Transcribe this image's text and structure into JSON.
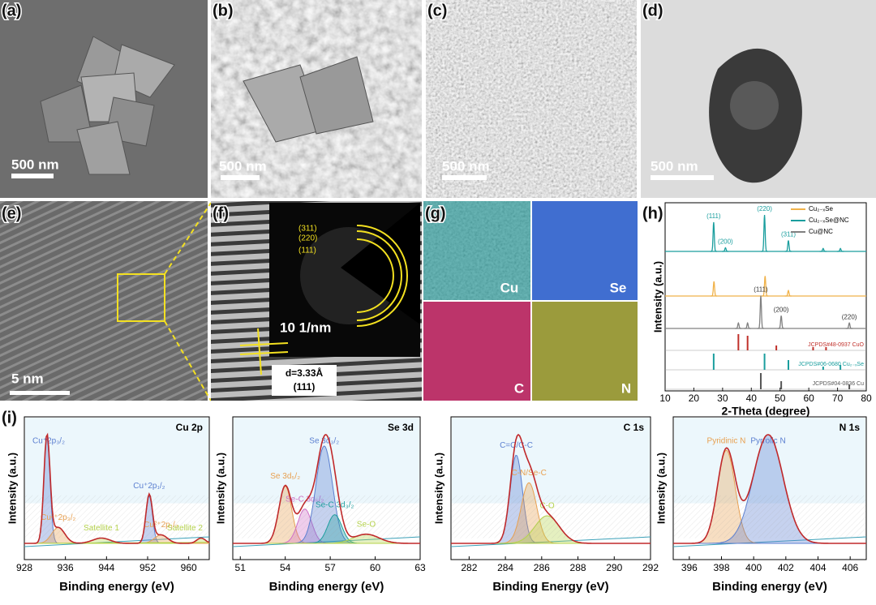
{
  "panels": {
    "a": {
      "label": "(a)",
      "scale_bar": "500 nm"
    },
    "b": {
      "label": "(b)",
      "scale_bar": "500 nm"
    },
    "c": {
      "label": "(c)",
      "scale_bar": "500 nm"
    },
    "d": {
      "label": "(d)",
      "scale_bar": "500 nm"
    },
    "e": {
      "label": "(e)",
      "scale_bar": "5 nm"
    },
    "f": {
      "label": "(f)",
      "rings": [
        "(311)",
        "(220)",
        "(111)"
      ],
      "inset_scale": "10 1/nm",
      "d_spacing": "d=3.33Å",
      "plane": "(111)"
    },
    "g": {
      "label": "(g)",
      "maps": [
        "Cu",
        "Se",
        "C",
        "N"
      ]
    },
    "h": {
      "label": "(h)",
      "type": "xrd",
      "x_label": "2-Theta (degree)",
      "y_label": "Intensity (a.u.)",
      "xlim": [
        10,
        80
      ],
      "xticks": [
        10,
        20,
        30,
        40,
        50,
        60,
        70,
        80
      ],
      "series": [
        {
          "name": "Cu₂₋ₓSe",
          "color": "#f0b24a",
          "peaks_x": [
            27,
            44.8,
            52.9
          ],
          "peaks_height": [
            0.4,
            0.55,
            0.15
          ]
        },
        {
          "name": "Cu₂₋ₓSe@NC",
          "color": "#1a9e9e",
          "peaks_x": [
            26.9,
            31,
            44.6,
            52.9,
            65,
            71
          ],
          "peaks_height": [
            0.8,
            0.1,
            1.0,
            0.3,
            0.08,
            0.08
          ],
          "peak_labels": [
            "(111)",
            "(200)",
            "(220)",
            "(311)",
            null,
            null
          ]
        },
        {
          "name": "Cu@NC",
          "color": "#808080",
          "peaks_x": [
            35.5,
            38.7,
            43.3,
            50.4,
            74.1
          ],
          "peaks_height": [
            0.15,
            0.15,
            0.9,
            0.35,
            0.15
          ],
          "peak_labels": [
            null,
            null,
            "(111)",
            "(200)",
            "(220)"
          ]
        }
      ],
      "references": [
        {
          "name": "JCPDS#48-0937 CuO",
          "color": "#c0302a",
          "peaks_x": [
            35.5,
            38.7,
            48.7,
            61.5,
            66
          ],
          "peaks_height": [
            1,
            0.9,
            0.3,
            0.2,
            0.2
          ]
        },
        {
          "name": "JCPDS#06-0680 Cu₂₋ₓSe",
          "color": "#1a9e9e",
          "peaks_x": [
            26.9,
            44.6,
            52.9,
            65,
            71
          ],
          "peaks_height": [
            1,
            1,
            0.6,
            0.2,
            0.3
          ]
        },
        {
          "name": "JCPDS#04-0836 Cu",
          "color": "#555555",
          "peaks_x": [
            43.3,
            50.4,
            74.1
          ],
          "peaks_height": [
            1,
            0.5,
            0.3
          ]
        }
      ]
    },
    "i": {
      "label": "(i)",
      "y_label": "Intensity (a.u.)",
      "spectra": [
        {
          "title": "Cu 2p",
          "x_label": "Binding energy (eV)",
          "xlim": [
            928,
            964
          ],
          "xticks": [
            928,
            936,
            944,
            952,
            960
          ],
          "components": [
            {
              "label": "Cu⁺2p₃/₂",
              "center": 932.4,
              "height": 1.0,
              "fwhm": 1.4,
              "color": "#5b7fd0"
            },
            {
              "label": "Cu²⁺2p₃/₂",
              "center": 934.6,
              "height": 0.15,
              "fwhm": 3,
              "color": "#e8a050"
            },
            {
              "label": "Satellite 1",
              "center": 943,
              "height": 0.05,
              "fwhm": 4,
              "color": "#b5d34a"
            },
            {
              "label": "Cu⁺2p₁/₂",
              "center": 952.3,
              "height": 0.45,
              "fwhm": 1.5,
              "color": "#5b7fd0"
            },
            {
              "label": "Cu²⁺2p₁/₂",
              "center": 954.6,
              "height": 0.08,
              "fwhm": 3,
              "color": "#e8a050"
            },
            {
              "label": "Satellite 2",
              "center": 962.4,
              "height": 0.05,
              "fwhm": 2,
              "color": "#b5d34a"
            }
          ]
        },
        {
          "title": "Se 3d",
          "x_label": "Binding energy (eV)",
          "xlim": [
            50.5,
            63
          ],
          "xticks": [
            51,
            54,
            57,
            60,
            63
          ],
          "components": [
            {
              "label": "Se 3d₅/₂",
              "center": 54.0,
              "height": 0.5,
              "fwhm": 1.0,
              "color": "#e8a050"
            },
            {
              "label": "Se-C 3d₅/₂",
              "center": 55.3,
              "height": 0.3,
              "fwhm": 1.1,
              "color": "#d070c8"
            },
            {
              "label": "Se 3d₃/₂",
              "center": 56.6,
              "height": 0.85,
              "fwhm": 1.3,
              "color": "#5b7fd0"
            },
            {
              "label": "Se-C 3d₃/₂",
              "center": 57.3,
              "height": 0.25,
              "fwhm": 1.1,
              "color": "#1a9e9e"
            },
            {
              "label": "Se-O",
              "center": 59.4,
              "height": 0.08,
              "fwhm": 2,
              "color": "#b5d34a"
            }
          ]
        },
        {
          "title": "C 1s",
          "x_label": "Binding Energy (eV)",
          "xlim": [
            281,
            292
          ],
          "xticks": [
            282,
            284,
            286,
            288,
            290,
            292
          ],
          "components": [
            {
              "label": "C=C/C-C",
              "center": 284.6,
              "height": 0.8,
              "fwhm": 0.8,
              "color": "#5b7fd0"
            },
            {
              "label": "C-N/Se-C",
              "center": 285.3,
              "height": 0.55,
              "fwhm": 1.0,
              "color": "#e8a050"
            },
            {
              "label": "C-O",
              "center": 286.3,
              "height": 0.25,
              "fwhm": 1.6,
              "color": "#b5d34a"
            }
          ]
        },
        {
          "title": "N 1s",
          "x_label": "Binding energy (eV)",
          "xlim": [
            395,
            407
          ],
          "xticks": [
            396,
            398,
            400,
            402,
            404,
            406
          ],
          "components": [
            {
              "label": "Pyridinic N",
              "center": 398.3,
              "height": 0.6,
              "fwhm": 1.3,
              "color": "#e8a050"
            },
            {
              "label": "Pyrrolic N",
              "center": 400.9,
              "height": 0.7,
              "fwhm": 2.2,
              "color": "#5b7fd0"
            }
          ]
        }
      ]
    }
  }
}
